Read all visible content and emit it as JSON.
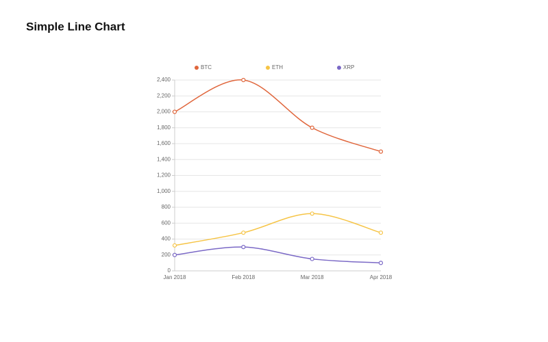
{
  "chart_data": {
    "type": "line",
    "title": "Simple Line Chart",
    "categories": [
      "Jan 2018",
      "Feb 2018",
      "Mar 2018",
      "Apr 2018"
    ],
    "series": [
      {
        "name": "BTC",
        "color": "#e0663c",
        "values": [
          2000,
          2400,
          1800,
          1500
        ]
      },
      {
        "name": "ETH",
        "color": "#f6c445",
        "values": [
          320,
          480,
          720,
          480
        ]
      },
      {
        "name": "XRP",
        "color": "#7a68c6",
        "values": [
          200,
          300,
          150,
          100
        ]
      }
    ],
    "ylim": [
      0,
      2400
    ],
    "yticks": [
      0,
      200,
      400,
      600,
      800,
      {
        "value": 1000,
        "label": "1,000"
      },
      {
        "value": 1200,
        "label": "1,200"
      },
      {
        "value": 1400,
        "label": "1,400"
      },
      {
        "value": 1600,
        "label": "1,600"
      },
      {
        "value": 1800,
        "label": "1,800"
      },
      {
        "value": 2000,
        "label": "2,000"
      },
      {
        "value": 2200,
        "label": "2,200"
      },
      {
        "value": 2400,
        "label": "2,400"
      }
    ],
    "grid": true,
    "legend": "top"
  }
}
